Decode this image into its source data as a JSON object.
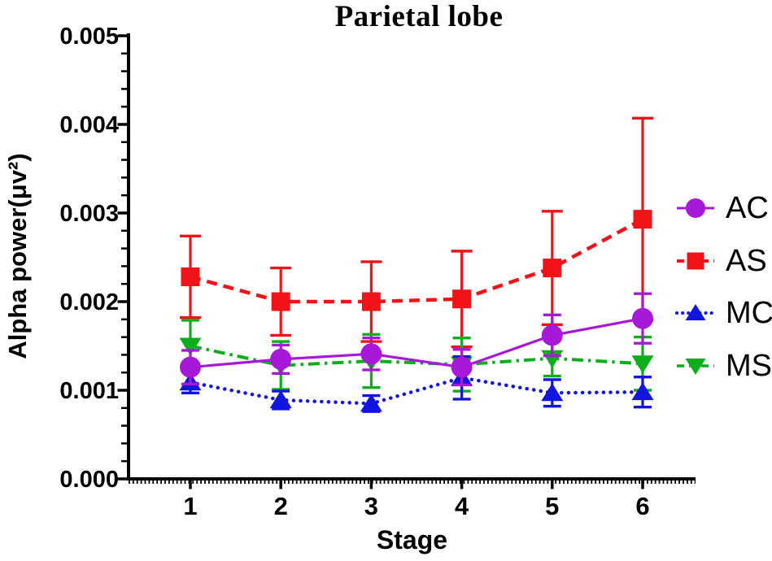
{
  "title": "Parietal lobe",
  "y_axis": {
    "label": "Alpha power(μv²)",
    "min": 0,
    "max": 0.005,
    "major_step": 0.001,
    "minor_step": 0.0002,
    "tick_labels": [
      "0.000",
      "0.001",
      "0.002",
      "0.003",
      "0.004",
      "0.005"
    ]
  },
  "x_axis": {
    "label": "Stage",
    "categories": [
      "1",
      "2",
      "3",
      "4",
      "5",
      "6"
    ]
  },
  "colors": {
    "AC": "#A818D8",
    "AS": "#F01318",
    "MC": "#1414E0",
    "MS": "#0DAE1C",
    "axis": "#000000",
    "background": "#FFFFFF",
    "text": "#000000"
  },
  "legend": {
    "position": "right",
    "items": [
      "AC",
      "AS",
      "MC",
      "MS"
    ]
  },
  "chart_data": {
    "type": "line",
    "title": "Parietal lobe",
    "xlabel": "Stage",
    "ylabel": "Alpha power(μv²)",
    "x": [
      1,
      2,
      3,
      4,
      5,
      6
    ],
    "ylim": [
      0,
      0.005
    ],
    "grid": false,
    "error_bars": true,
    "legend_position": "right",
    "series": [
      {
        "name": "AC",
        "color": "#A818D8",
        "marker": "circle",
        "line_style": "solid",
        "values": [
          0.00126,
          0.00135,
          0.00141,
          0.00126,
          0.00162,
          0.00181
        ],
        "errors": [
          0.00019,
          0.00016,
          0.00018,
          0.0002,
          0.00023,
          0.00028
        ]
      },
      {
        "name": "AS",
        "color": "#F01318",
        "marker": "square",
        "line_style": "dashed",
        "values": [
          0.00228,
          0.002,
          0.002,
          0.00203,
          0.00238,
          0.00293
        ],
        "errors": [
          0.00046,
          0.00038,
          0.00045,
          0.00054,
          0.00064,
          0.00114
        ]
      },
      {
        "name": "MC",
        "color": "#1414E0",
        "marker": "triangle-up",
        "line_style": "dotted",
        "values": [
          0.00109,
          0.00089,
          0.00085,
          0.00114,
          0.00097,
          0.00098
        ],
        "errors": [
          0.00012,
          0.0001,
          9e-05,
          0.00024,
          0.00015,
          0.00017
        ]
      },
      {
        "name": "MS",
        "color": "#0DAE1C",
        "marker": "triangle-down",
        "line_style": "dash-dot",
        "values": [
          0.0015,
          0.00128,
          0.00133,
          0.00129,
          0.00136,
          0.0013
        ],
        "errors": [
          0.00029,
          0.00027,
          0.0003,
          0.0003,
          0.0002,
          0.0003
        ]
      }
    ]
  }
}
